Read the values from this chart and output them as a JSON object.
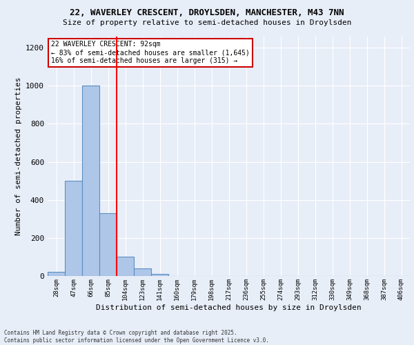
{
  "title1": "22, WAVERLEY CRESCENT, DROYLSDEN, MANCHESTER, M43 7NN",
  "title2": "Size of property relative to semi-detached houses in Droylsden",
  "xlabel": "Distribution of semi-detached houses by size in Droylsden",
  "ylabel": "Number of semi-detached properties",
  "bin_labels": [
    "28sqm",
    "47sqm",
    "66sqm",
    "85sqm",
    "104sqm",
    "123sqm",
    "141sqm",
    "160sqm",
    "179sqm",
    "198sqm",
    "217sqm",
    "236sqm",
    "255sqm",
    "274sqm",
    "293sqm",
    "312sqm",
    "330sqm",
    "349sqm",
    "368sqm",
    "387sqm",
    "406sqm"
  ],
  "bar_heights": [
    20,
    500,
    1000,
    330,
    100,
    40,
    10,
    0,
    0,
    0,
    0,
    0,
    0,
    0,
    0,
    0,
    0,
    0,
    0,
    0,
    0
  ],
  "bar_color": "#aec6e8",
  "bar_edgecolor": "#5a8fc2",
  "red_line_x": 3.5,
  "annotation_title": "22 WAVERLEY CRESCENT: 92sqm",
  "annotation_line1": "← 83% of semi-detached houses are smaller (1,645)",
  "annotation_line2": "16% of semi-detached houses are larger (315) →",
  "annotation_box_color": "#ffffff",
  "annotation_box_edgecolor": "#cc0000",
  "ylim": [
    0,
    1260
  ],
  "yticks": [
    0,
    200,
    400,
    600,
    800,
    1000,
    1200
  ],
  "footer1": "Contains HM Land Registry data © Crown copyright and database right 2025.",
  "footer2": "Contains public sector information licensed under the Open Government Licence v3.0.",
  "bg_color": "#e8eef8"
}
